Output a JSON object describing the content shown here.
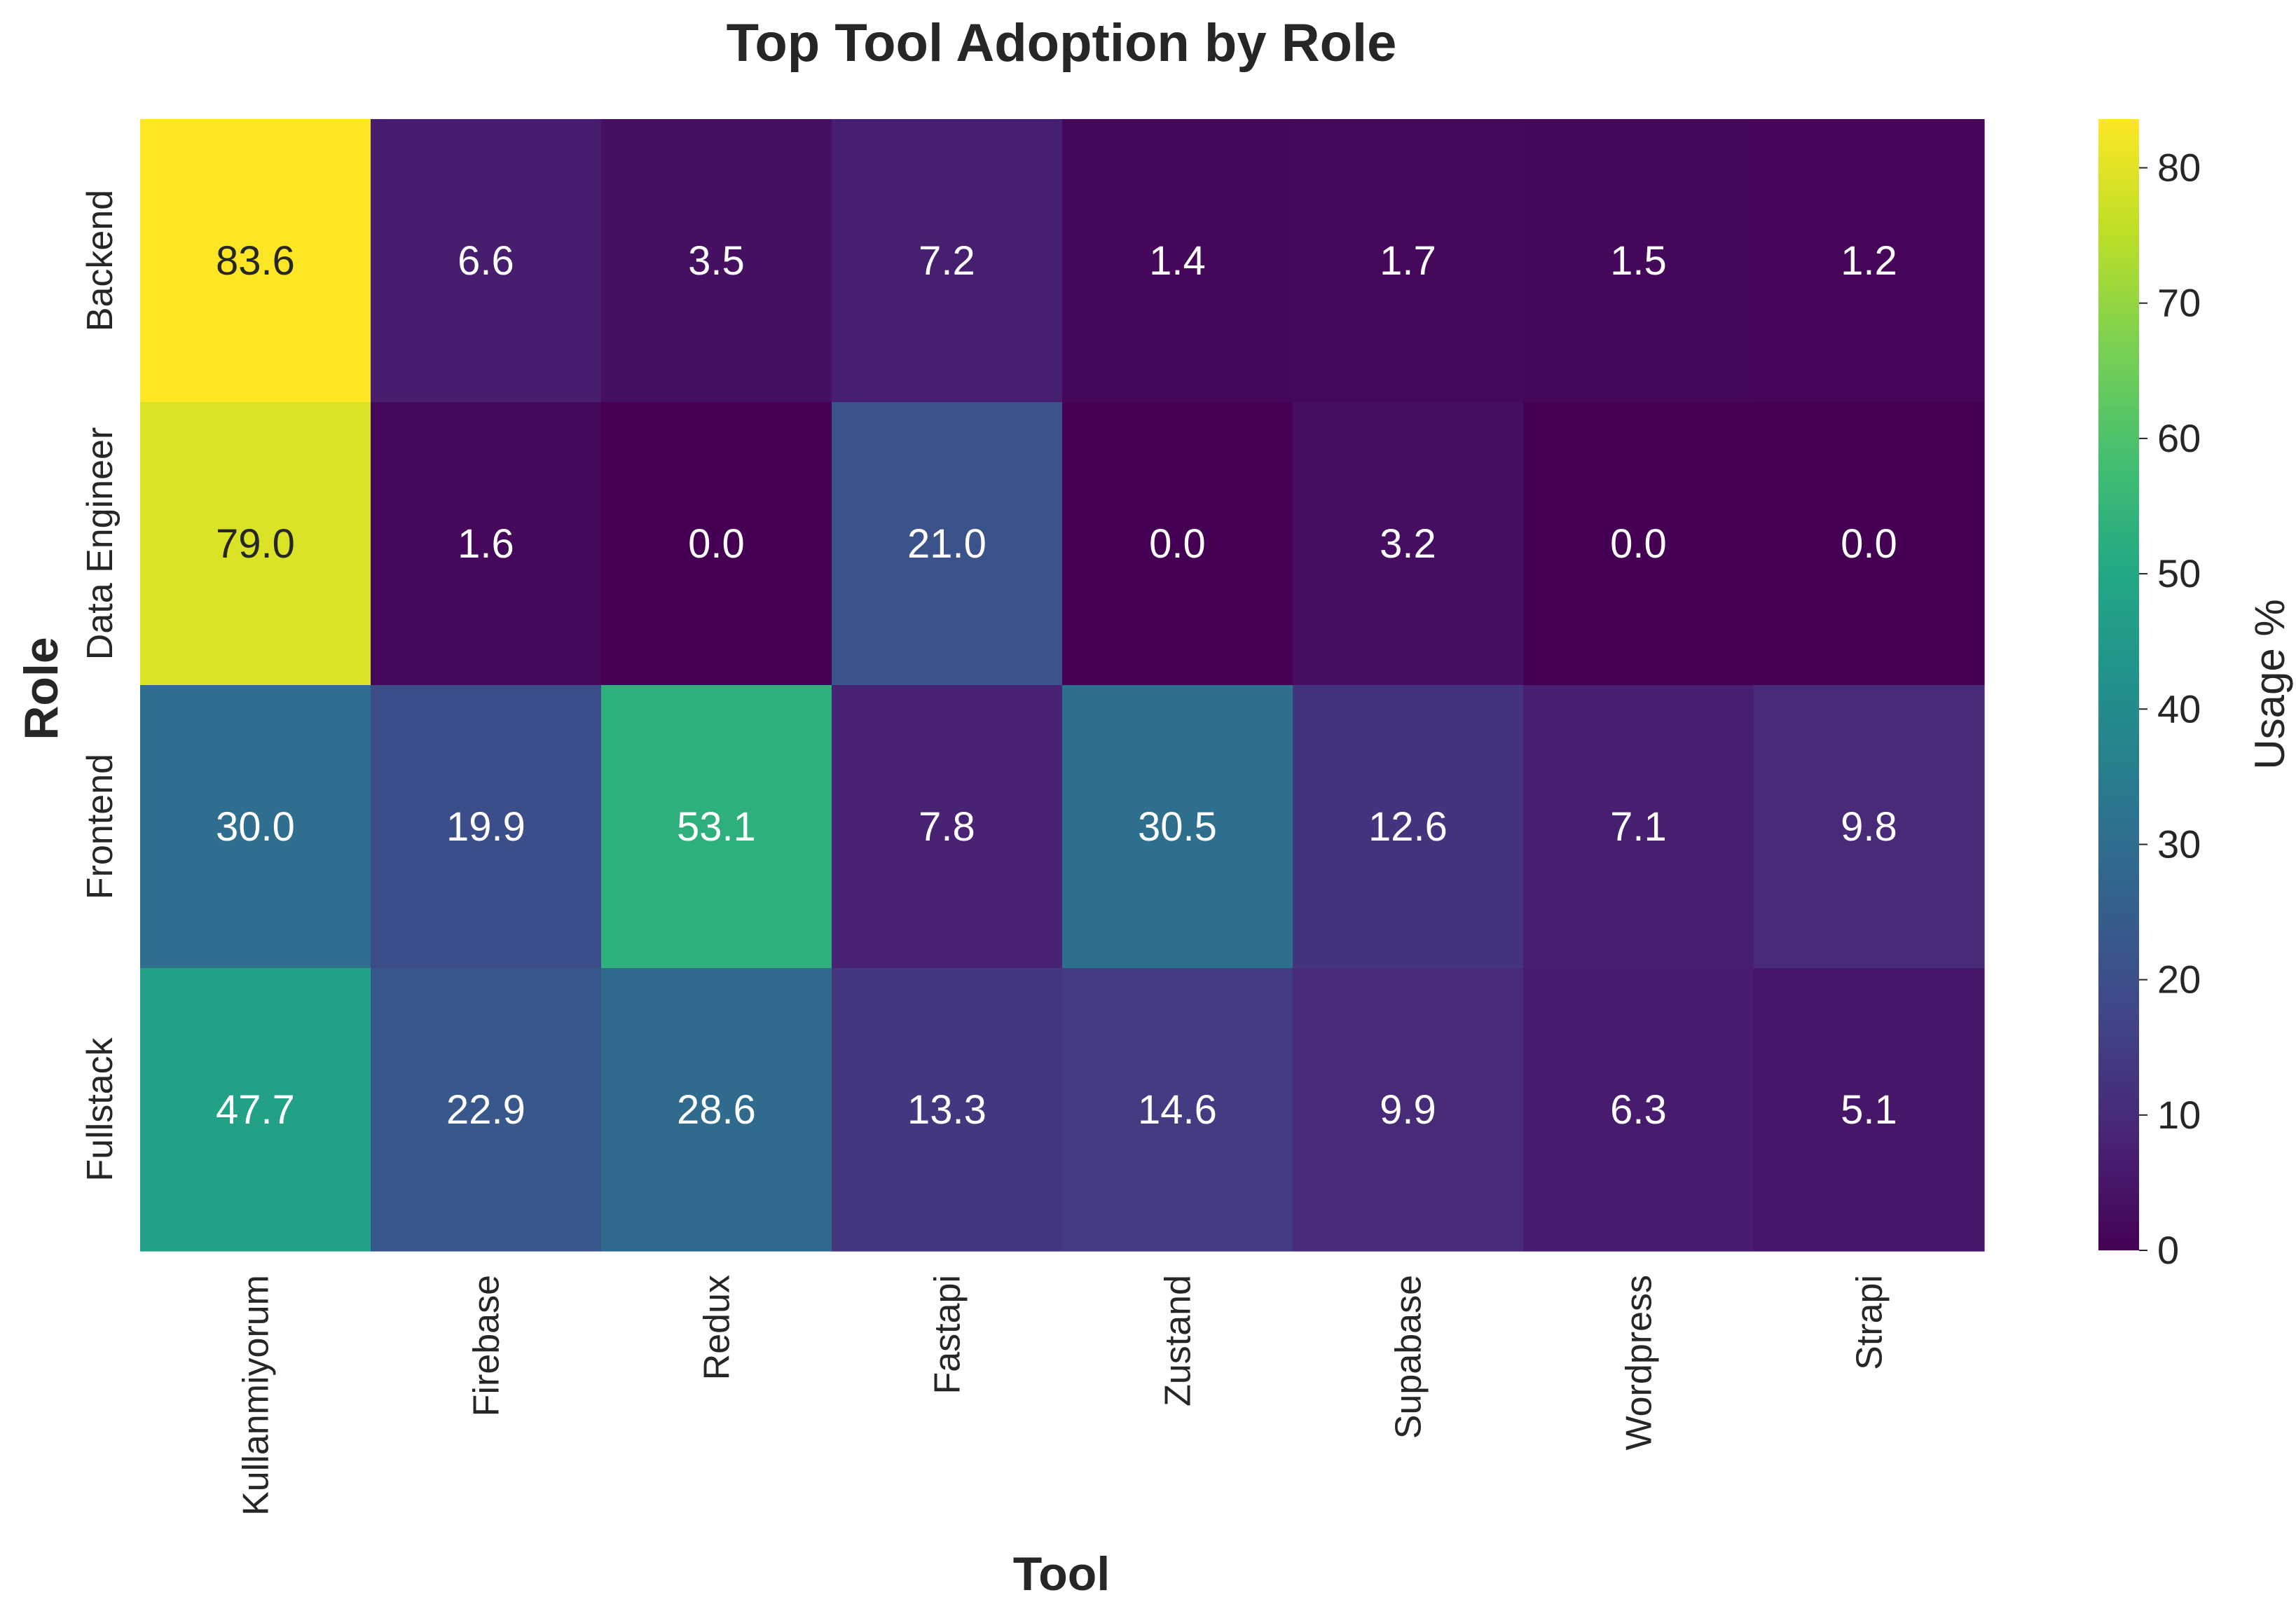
{
  "chart_data": {
    "type": "heatmap",
    "title": "Top Tool Adoption by Role",
    "xlabel": "Tool",
    "ylabel": "Role",
    "x": [
      "Kullanmiyorum",
      "Firebase",
      "Redux",
      "Fastapi",
      "Zustand",
      "Supabase",
      "Wordpress",
      "Strapi"
    ],
    "y": [
      "Backend",
      "Data Engineer",
      "Frontend",
      "Fullstack"
    ],
    "values": [
      [
        83.6,
        6.6,
        3.5,
        7.2,
        1.4,
        1.7,
        1.5,
        1.2
      ],
      [
        79.0,
        1.6,
        0.0,
        21.0,
        0.0,
        3.2,
        0.0,
        0.0
      ],
      [
        30.0,
        19.9,
        53.1,
        7.8,
        30.5,
        12.6,
        7.1,
        9.8
      ],
      [
        47.7,
        22.9,
        28.6,
        13.3,
        14.6,
        9.9,
        6.3,
        5.1
      ]
    ],
    "value_format": "0.0",
    "colormap": "viridis",
    "colorbar": {
      "label": "Usage %",
      "range": [
        0,
        83.6
      ],
      "ticks": [
        0,
        10,
        20,
        30,
        40,
        50,
        60,
        70,
        80
      ]
    },
    "grid": false
  }
}
